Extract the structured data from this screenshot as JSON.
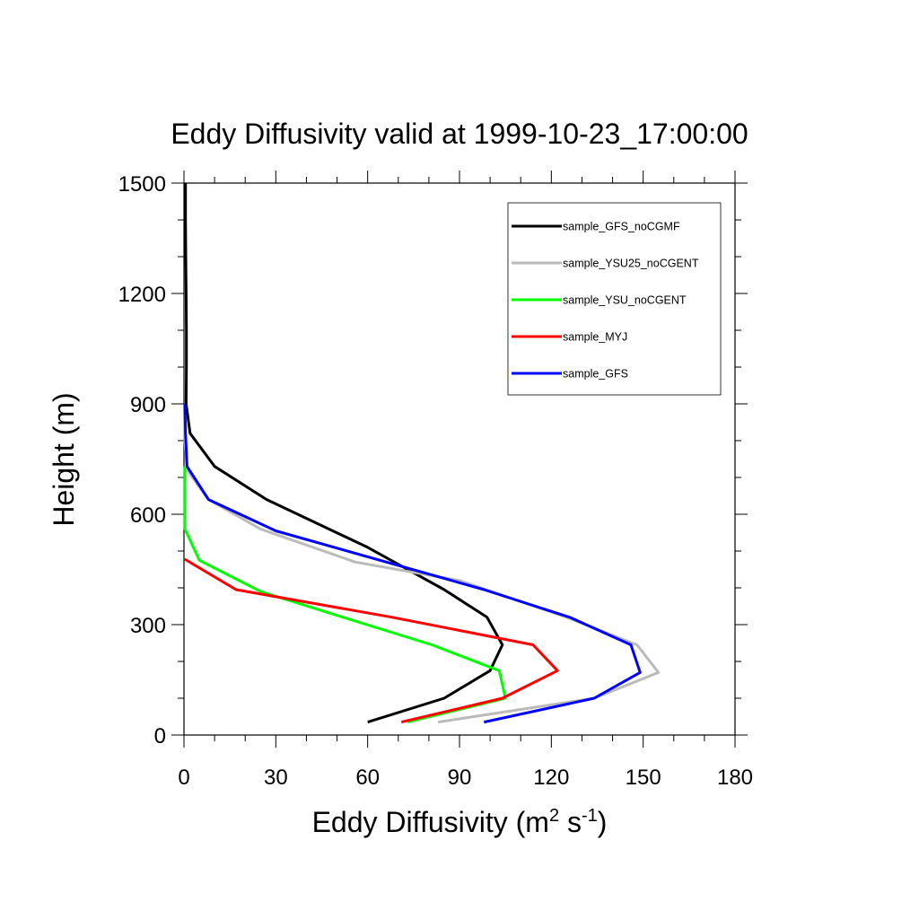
{
  "chart_data": {
    "type": "line",
    "title": "Eddy Diffusivity valid at 1999-10-23_17:00:00",
    "xlabel_base": "Eddy Diffusivity (m",
    "xlabel_sup1": "2",
    "xlabel_mid": " s",
    "xlabel_sup2": "-1",
    "xlabel_end": ")",
    "ylabel": "Height (m)",
    "xlim": [
      0,
      180
    ],
    "ylim": [
      0,
      1500
    ],
    "xticks": [
      0,
      30,
      60,
      90,
      120,
      150,
      180
    ],
    "yticks": [
      0,
      300,
      600,
      900,
      1200,
      1500
    ],
    "x_minor_step": 10,
    "y_minor_step": 100,
    "grid": false,
    "legend_position": "top-right",
    "series": [
      {
        "name": "sample_GFS_noCGMF",
        "color": "#000000",
        "points": [
          [
            60,
            35
          ],
          [
            85,
            100
          ],
          [
            100,
            175
          ],
          [
            104,
            245
          ],
          [
            99,
            320
          ],
          [
            85,
            395
          ],
          [
            60,
            510
          ],
          [
            27,
            640
          ],
          [
            10,
            730
          ],
          [
            2,
            820
          ],
          [
            0.7,
            900
          ],
          [
            0.8,
            1000
          ],
          [
            0.8,
            1100
          ],
          [
            0.7,
            1200
          ],
          [
            0.6,
            1300
          ],
          [
            0.5,
            1400
          ],
          [
            0.5,
            1500
          ]
        ]
      },
      {
        "name": "sample_YSU25_noCGENT",
        "color": "#bbbbbb",
        "points": [
          [
            83,
            35
          ],
          [
            134,
            100
          ],
          [
            155,
            170
          ],
          [
            148,
            245
          ],
          [
            125,
            320
          ],
          [
            90,
            420
          ],
          [
            56,
            470
          ],
          [
            25,
            560
          ],
          [
            8,
            640
          ],
          [
            1,
            720
          ],
          [
            0.3,
            800
          ],
          [
            0.3,
            900
          ]
        ]
      },
      {
        "name": "sample_YSU_noCGENT",
        "color": "#00ff00",
        "points": [
          [
            73,
            35
          ],
          [
            105,
            100
          ],
          [
            103,
            175
          ],
          [
            81,
            245
          ],
          [
            52,
            320
          ],
          [
            25,
            390
          ],
          [
            5,
            475
          ],
          [
            0.3,
            560
          ],
          [
            0.3,
            650
          ],
          [
            0.3,
            730
          ]
        ]
      },
      {
        "name": "sample_MYJ",
        "color": "#ff0000",
        "points": [
          [
            71,
            35
          ],
          [
            104,
            100
          ],
          [
            122,
            175
          ],
          [
            114,
            245
          ],
          [
            68,
            320
          ],
          [
            17,
            395
          ],
          [
            0.2,
            478
          ]
        ]
      },
      {
        "name": "sample_GFS",
        "color": "#0000ff",
        "points": [
          [
            98,
            35
          ],
          [
            134,
            100
          ],
          [
            149,
            170
          ],
          [
            146,
            245
          ],
          [
            126,
            320
          ],
          [
            98,
            395
          ],
          [
            30,
            555
          ],
          [
            8,
            640
          ],
          [
            1,
            730
          ],
          [
            0.5,
            820
          ],
          [
            0.3,
            900
          ]
        ]
      }
    ]
  }
}
